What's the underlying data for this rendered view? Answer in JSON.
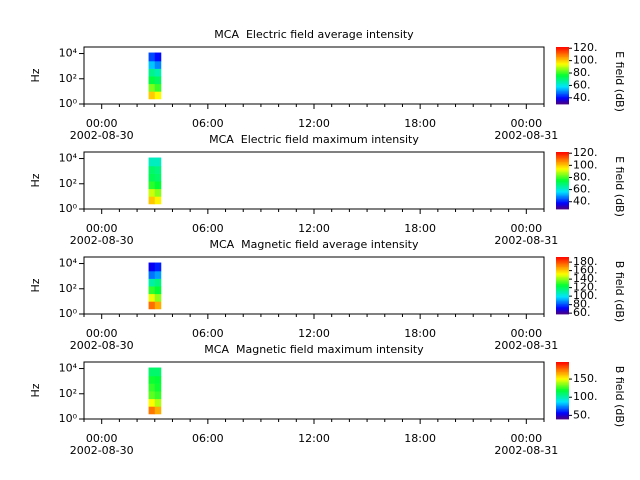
{
  "chart_data": [
    {
      "type": "spectrogram",
      "title": "MCA  Electric field average intensity",
      "ylabel": "Hz",
      "colorbar_label": "E field (dB)",
      "colormap": "rainbow",
      "log_y": true,
      "xlim": [
        -1,
        25
      ],
      "xticks": [
        {
          "value": 0,
          "label": "00:00"
        },
        {
          "value": 6,
          "label": "06:00"
        },
        {
          "value": 12,
          "label": "12:00"
        },
        {
          "value": 18,
          "label": "18:00"
        },
        {
          "value": 24,
          "label": "00:00"
        }
      ],
      "xminorticks": [
        -1,
        1,
        2,
        3,
        4,
        5,
        7,
        8,
        9,
        10,
        11,
        13,
        14,
        15,
        16,
        17,
        19,
        20,
        21,
        22,
        23,
        25
      ],
      "x_date_labels": [
        {
          "value": 0,
          "label": "2002-08-30"
        },
        {
          "value": 24,
          "label": "2002-08-31"
        }
      ],
      "ylim": [
        1,
        33000
      ],
      "yticks": [
        {
          "value": 1,
          "label": "10⁰"
        },
        {
          "value": 100,
          "label": "10²"
        },
        {
          "value": 10000,
          "label": "10⁴"
        }
      ],
      "zlim": [
        30,
        122
      ],
      "zticks": [
        {
          "value": 40,
          "label": "40."
        },
        {
          "value": 60,
          "label": "60."
        },
        {
          "value": 80,
          "label": "80."
        },
        {
          "value": 100,
          "label": "100."
        },
        {
          "value": 120,
          "label": "120."
        }
      ],
      "x_bins": [
        2.65,
        3.0,
        3.35
      ],
      "y_bins": [
        2.5,
        10,
        40,
        160,
        640,
        2560,
        12000
      ],
      "values": [
        [
          100,
          95
        ],
        [
          85,
          80
        ],
        [
          75,
          72
        ],
        [
          68,
          65
        ],
        [
          55,
          50
        ],
        [
          45,
          40
        ]
      ]
    },
    {
      "type": "spectrogram",
      "title": "MCA  Electric field maximum intensity",
      "ylabel": "Hz",
      "colorbar_label": "E field (dB)",
      "colormap": "rainbow",
      "log_y": true,
      "xlim": [
        -1,
        25
      ],
      "xticks": [
        {
          "value": 0,
          "label": "00:00"
        },
        {
          "value": 6,
          "label": "06:00"
        },
        {
          "value": 12,
          "label": "12:00"
        },
        {
          "value": 18,
          "label": "18:00"
        },
        {
          "value": 24,
          "label": "00:00"
        }
      ],
      "xminorticks": [
        -1,
        1,
        2,
        3,
        4,
        5,
        7,
        8,
        9,
        10,
        11,
        13,
        14,
        15,
        16,
        17,
        19,
        20,
        21,
        22,
        23,
        25
      ],
      "x_date_labels": [
        {
          "value": 0,
          "label": "2002-08-30"
        },
        {
          "value": 24,
          "label": "2002-08-31"
        }
      ],
      "ylim": [
        1,
        33000
      ],
      "yticks": [
        {
          "value": 1,
          "label": "10⁰"
        },
        {
          "value": 100,
          "label": "10²"
        },
        {
          "value": 10000,
          "label": "10⁴"
        }
      ],
      "zlim": [
        28,
        122
      ],
      "zticks": [
        {
          "value": 40,
          "label": "40."
        },
        {
          "value": 60,
          "label": "60."
        },
        {
          "value": 80,
          "label": "80."
        },
        {
          "value": 100,
          "label": "100."
        },
        {
          "value": 120,
          "label": "120."
        }
      ],
      "x_bins": [
        2.65,
        3.0,
        3.35
      ],
      "y_bins": [
        2.5,
        10,
        40,
        160,
        640,
        2560,
        12000
      ],
      "values": [
        [
          100,
          95
        ],
        [
          90,
          85
        ],
        [
          78,
          75
        ],
        [
          72,
          70
        ],
        [
          70,
          68
        ],
        [
          62,
          62
        ]
      ]
    },
    {
      "type": "spectrogram",
      "title": "MCA  Magnetic field average intensity",
      "ylabel": "Hz",
      "colorbar_label": "B field (dB)",
      "colormap": "rainbow",
      "log_y": true,
      "xlim": [
        -1,
        25
      ],
      "xticks": [
        {
          "value": 0,
          "label": "00:00"
        },
        {
          "value": 6,
          "label": "06:00"
        },
        {
          "value": 12,
          "label": "12:00"
        },
        {
          "value": 18,
          "label": "18:00"
        },
        {
          "value": 24,
          "label": "00:00"
        }
      ],
      "xminorticks": [
        -1,
        1,
        2,
        3,
        4,
        5,
        7,
        8,
        9,
        10,
        11,
        13,
        14,
        15,
        16,
        17,
        19,
        20,
        21,
        22,
        23,
        25
      ],
      "x_date_labels": [
        {
          "value": 0,
          "label": "2002-08-30"
        },
        {
          "value": 24,
          "label": "2002-08-31"
        }
      ],
      "ylim": [
        1,
        33000
      ],
      "yticks": [
        {
          "value": 1,
          "label": "10⁰"
        },
        {
          "value": 100,
          "label": "10²"
        },
        {
          "value": 10000,
          "label": "10⁴"
        }
      ],
      "zlim": [
        58,
        192
      ],
      "zticks": [
        {
          "value": 60,
          "label": "60."
        },
        {
          "value": 80,
          "label": "80."
        },
        {
          "value": 100,
          "label": "100."
        },
        {
          "value": 120,
          "label": "120."
        },
        {
          "value": 140,
          "label": "140."
        },
        {
          "value": 160,
          "label": "160."
        },
        {
          "value": 180,
          "label": "180."
        }
      ],
      "x_bins": [
        2.65,
        3.0,
        3.35
      ],
      "y_bins": [
        2.5,
        10,
        40,
        160,
        640,
        2560,
        12000
      ],
      "values": [
        [
          175,
          165
        ],
        [
          150,
          140
        ],
        [
          130,
          125
        ],
        [
          110,
          115
        ],
        [
          85,
          90
        ],
        [
          70,
          75
        ]
      ]
    },
    {
      "type": "spectrogram",
      "title": "MCA  Magnetic field maximum intensity",
      "ylabel": "Hz",
      "colorbar_label": "B field (dB)",
      "colormap": "rainbow",
      "log_y": true,
      "xlim": [
        -1,
        25
      ],
      "xticks": [
        {
          "value": 0,
          "label": "00:00"
        },
        {
          "value": 6,
          "label": "06:00"
        },
        {
          "value": 12,
          "label": "12:00"
        },
        {
          "value": 18,
          "label": "18:00"
        },
        {
          "value": 24,
          "label": "00:00"
        }
      ],
      "xminorticks": [
        -1,
        1,
        2,
        3,
        4,
        5,
        7,
        8,
        9,
        10,
        11,
        13,
        14,
        15,
        16,
        17,
        19,
        20,
        21,
        22,
        23,
        25
      ],
      "x_date_labels": [
        {
          "value": 0,
          "label": "2002-08-30"
        },
        {
          "value": 24,
          "label": "2002-08-31"
        }
      ],
      "ylim": [
        1,
        33000
      ],
      "yticks": [
        {
          "value": 1,
          "label": "10⁰"
        },
        {
          "value": 100,
          "label": "10²"
        },
        {
          "value": 10000,
          "label": "10⁴"
        }
      ],
      "zlim": [
        40,
        197
      ],
      "zticks": [
        {
          "value": 50,
          "label": "50."
        },
        {
          "value": 100,
          "label": "100."
        },
        {
          "value": 150,
          "label": "150."
        }
      ],
      "x_bins": [
        2.65,
        3.0,
        3.35
      ],
      "y_bins": [
        2.5,
        10,
        40,
        160,
        640,
        2560,
        12000
      ],
      "values": [
        [
          175,
          165
        ],
        [
          150,
          140
        ],
        [
          130,
          125
        ],
        [
          125,
          120
        ],
        [
          120,
          118
        ],
        [
          110,
          110
        ]
      ]
    }
  ]
}
